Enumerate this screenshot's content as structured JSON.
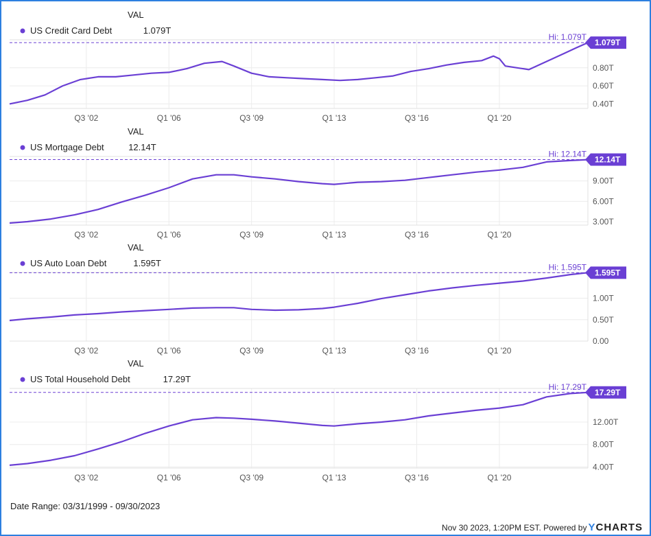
{
  "chart_data": [
    {
      "type": "line",
      "header": "VAL",
      "series": [
        {
          "name": "US Credit Card Debt",
          "value_label": "1.079T",
          "color": "#6a3fd4",
          "x": [
            1999.25,
            2000.0,
            2000.75,
            2001.5,
            2002.25,
            2003.0,
            2003.75,
            2004.5,
            2005.25,
            2006.0,
            2006.75,
            2007.5,
            2008.25,
            2008.75,
            2009.5,
            2010.25,
            2011.0,
            2011.75,
            2012.5,
            2013.25,
            2014.0,
            2014.75,
            2015.5,
            2016.25,
            2017.0,
            2017.75,
            2018.5,
            2019.25,
            2019.75,
            2020.0,
            2020.25,
            2020.75,
            2021.25,
            2021.75,
            2022.25,
            2022.75,
            2023.25,
            2023.75
          ],
          "values": [
            0.4,
            0.44,
            0.5,
            0.6,
            0.67,
            0.7,
            0.7,
            0.72,
            0.74,
            0.75,
            0.79,
            0.85,
            0.87,
            0.82,
            0.74,
            0.7,
            0.69,
            0.68,
            0.67,
            0.66,
            0.67,
            0.69,
            0.71,
            0.76,
            0.79,
            0.83,
            0.86,
            0.88,
            0.93,
            0.9,
            0.82,
            0.8,
            0.78,
            0.84,
            0.9,
            0.96,
            1.02,
            1.079
          ]
        }
      ],
      "y_ticks": [
        "0.40T",
        "0.60T",
        "0.80T"
      ],
      "ylim": [
        0.35,
        1.11
      ],
      "hi_label": "Hi: 1.079T",
      "end_badge": "1.079T",
      "x_ticks": [
        "Q3 '02",
        "Q1 '06",
        "Q3 '09",
        "Q1 '13",
        "Q3 '16",
        "Q1 '20"
      ],
      "xlim": [
        1999.25,
        2023.75
      ],
      "grid": true
    },
    {
      "type": "line",
      "header": "VAL",
      "series": [
        {
          "name": "US Mortgage Debt",
          "value_label": "12.14T",
          "color": "#6a3fd4",
          "x": [
            1999.25,
            2000.0,
            2001.0,
            2002.0,
            2003.0,
            2004.0,
            2005.0,
            2006.0,
            2007.0,
            2008.0,
            2008.75,
            2009.5,
            2010.5,
            2011.5,
            2012.5,
            2013.0,
            2014.0,
            2015.0,
            2016.0,
            2017.0,
            2018.0,
            2019.0,
            2020.0,
            2021.0,
            2022.0,
            2023.0,
            2023.75
          ],
          "values": [
            2.8,
            3.0,
            3.4,
            4.0,
            4.8,
            5.9,
            6.9,
            8.0,
            9.3,
            9.9,
            9.9,
            9.6,
            9.3,
            8.9,
            8.6,
            8.5,
            8.8,
            8.9,
            9.1,
            9.5,
            9.9,
            10.3,
            10.6,
            11.0,
            11.8,
            12.0,
            12.14
          ]
        }
      ],
      "y_ticks": [
        "3.00T",
        "6.00T",
        "9.00T"
      ],
      "ylim": [
        2.5,
        12.6
      ],
      "hi_label": "Hi: 12.14T",
      "end_badge": "12.14T",
      "x_ticks": [
        "Q3 '02",
        "Q1 '06",
        "Q3 '09",
        "Q1 '13",
        "Q3 '16",
        "Q1 '20"
      ],
      "xlim": [
        1999.25,
        2023.75
      ],
      "grid": true
    },
    {
      "type": "line",
      "header": "VAL",
      "series": [
        {
          "name": "US Auto Loan Debt",
          "value_label": "1.595T",
          "color": "#6a3fd4",
          "x": [
            1999.25,
            2000.0,
            2001.0,
            2002.0,
            2003.0,
            2004.0,
            2005.0,
            2006.0,
            2007.0,
            2008.0,
            2008.75,
            2009.5,
            2010.5,
            2011.5,
            2012.5,
            2013.0,
            2014.0,
            2015.0,
            2016.0,
            2017.0,
            2018.0,
            2019.0,
            2020.0,
            2021.0,
            2022.0,
            2023.0,
            2023.75
          ],
          "values": [
            0.48,
            0.52,
            0.56,
            0.61,
            0.64,
            0.68,
            0.71,
            0.74,
            0.77,
            0.78,
            0.78,
            0.74,
            0.72,
            0.73,
            0.76,
            0.79,
            0.88,
            0.99,
            1.08,
            1.17,
            1.24,
            1.3,
            1.35,
            1.4,
            1.47,
            1.55,
            1.595
          ]
        }
      ],
      "y_ticks": [
        "0.00",
        "0.50T",
        "1.00T"
      ],
      "ylim": [
        0.0,
        1.6
      ],
      "hi_label": "Hi: 1.595T",
      "end_badge": "1.595T",
      "x_ticks": [
        "Q3 '02",
        "Q1 '06",
        "Q3 '09",
        "Q1 '13",
        "Q3 '16",
        "Q1 '20"
      ],
      "xlim": [
        1999.25,
        2023.75
      ],
      "grid": true
    },
    {
      "type": "line",
      "header": "VAL",
      "series": [
        {
          "name": "US Total Household Debt",
          "value_label": "17.29T",
          "color": "#6a3fd4",
          "x": [
            1999.25,
            2000.0,
            2001.0,
            2002.0,
            2003.0,
            2004.0,
            2005.0,
            2006.0,
            2007.0,
            2008.0,
            2008.75,
            2009.5,
            2010.5,
            2011.5,
            2012.5,
            2013.0,
            2014.0,
            2015.0,
            2016.0,
            2017.0,
            2018.0,
            2019.0,
            2020.0,
            2021.0,
            2022.0,
            2023.0,
            2023.75
          ],
          "values": [
            4.3,
            4.6,
            5.2,
            6.0,
            7.2,
            8.5,
            10.0,
            11.3,
            12.4,
            12.8,
            12.7,
            12.5,
            12.2,
            11.8,
            11.4,
            11.3,
            11.7,
            12.0,
            12.4,
            13.1,
            13.6,
            14.1,
            14.5,
            15.1,
            16.5,
            17.1,
            17.29
          ]
        }
      ],
      "y_ticks": [
        "4.00T",
        "8.00T",
        "12.00T"
      ],
      "ylim": [
        3.8,
        18.0
      ],
      "hi_label": "Hi: 17.29T",
      "end_badge": "17.29T",
      "x_ticks": [
        "Q3 '02",
        "Q1 '06",
        "Q3 '09",
        "Q1 '13",
        "Q3 '16",
        "Q1 '20"
      ],
      "xlim": [
        1999.25,
        2023.75
      ],
      "grid": true
    }
  ],
  "tick_positions": [
    2002.5,
    2006.0,
    2009.5,
    2013.0,
    2016.5,
    2020.0
  ],
  "footer": {
    "date_range": "Date Range: 03/31/1999 - 09/30/2023",
    "powered_text": "Nov 30 2023, 1:20PM EST. Powered by",
    "brand_y": "Y",
    "brand_rest": "CHARTS"
  },
  "colors": {
    "accent": "#6a3fd4",
    "frame": "#2d7fe0",
    "grid": "#e8e8e8"
  }
}
